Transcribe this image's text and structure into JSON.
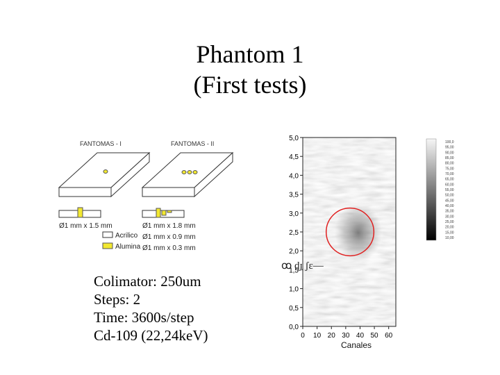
{
  "slide": {
    "title_line1": "Phantom 1",
    "title_line2": "(First tests)"
  },
  "phantom_diagram": {
    "label_left": "FANTOMAS - I",
    "label_right": "FANTOMAS - II",
    "dim_left": "Ø1 mm x 1.5 mm",
    "dim_right": [
      "Ø1 mm x 1.8 mm",
      "Ø1 mm x 0.9 mm",
      "Ø1 mm x 0.3 mm"
    ],
    "legend": [
      "Acrilico",
      "Alumina"
    ],
    "colors": {
      "alumina": "#f2e830",
      "acrylic": "#ffffff",
      "outline": "#333333"
    }
  },
  "specs": [
    "Colimator: 250um",
    "Steps: 2",
    "Time: 3600s/step",
    "Cd-109 (22,24keV)"
  ],
  "image_plot": {
    "type": "heatmap",
    "xlabel": "Canales",
    "ylabel": "",
    "xlim": [
      0,
      65
    ],
    "ylim": [
      0,
      5
    ],
    "x_ticks": [
      "0",
      "10",
      "20",
      "30",
      "40",
      "50",
      "60"
    ],
    "y_ticks": [
      "0,0",
      "0,5",
      "1,0",
      "1,5",
      "2,0",
      "2,5",
      "3,0",
      "3,5",
      "4,0",
      "4,5",
      "5,0"
    ],
    "circle": {
      "cx": 33,
      "cy": 2.5,
      "r": 9,
      "color": "#e02020"
    },
    "colorbar_ticks": [
      "100,0",
      "95,00",
      "90,00",
      "85,00",
      "80,00",
      "75,00",
      "70,00",
      "65,00",
      "60,00",
      "55,00",
      "50,00",
      "45,00",
      "40,00",
      "35,00",
      "30,00",
      "25,00",
      "20,00",
      "15,00",
      "10,00"
    ]
  }
}
